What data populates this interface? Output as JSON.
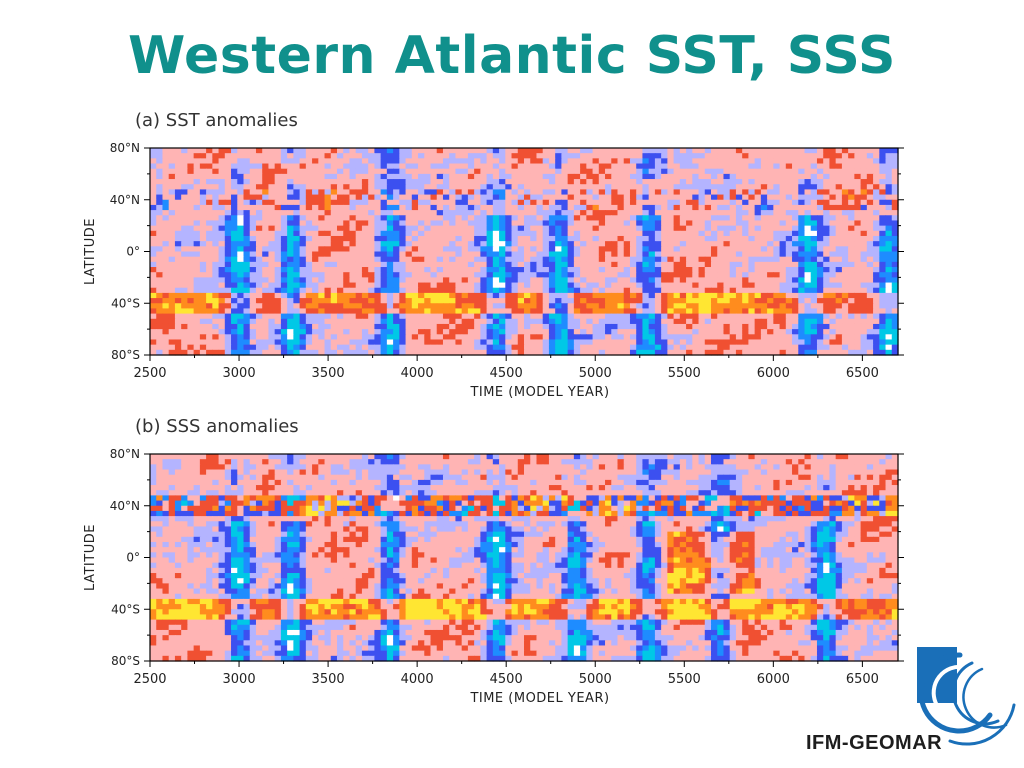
{
  "slide": {
    "title": "Western Atlantic SST, SSS",
    "title_color": "#10908c"
  },
  "colors": {
    "strong_negative": "#ffffff",
    "negative_4": "#00c8e6",
    "negative_3": "#1e8cff",
    "negative_2": "#3c50f0",
    "negative_1": "#b4b4ff",
    "positive_1": "#ffb4b4",
    "positive_2": "#f05032",
    "positive_3": "#ff8c1e",
    "positive_4": "#ffe632"
  },
  "logo": {
    "text": "IFM-GEOMAR",
    "icon": "ifm-geomar-logo-icon",
    "color": "#1a6fb8"
  },
  "chart_data": [
    {
      "type": "heatmap",
      "title": "(a) SST anomalies",
      "xlabel": "TIME (MODEL YEAR)",
      "ylabel": "LATITUDE",
      "xlim": [
        2500,
        6700
      ],
      "ylim": [
        -80,
        80
      ],
      "x_ticks": [
        "2500",
        "3000",
        "3500",
        "4000",
        "4500",
        "5000",
        "5500",
        "6000",
        "6500"
      ],
      "y_ticks": [
        "80°N",
        "40°N",
        "0°",
        "40°S",
        "80°S"
      ],
      "cold_events_x": [
        3000,
        3300,
        3850,
        4450,
        4800,
        5300,
        6200,
        6650
      ],
      "grid": false
    },
    {
      "type": "heatmap",
      "title": "(b) SSS anomalies",
      "xlabel": "TIME (MODEL YEAR)",
      "ylabel": "LATITUDE",
      "xlim": [
        2500,
        6700
      ],
      "ylim": [
        -80,
        80
      ],
      "x_ticks": [
        "2500",
        "3000",
        "3500",
        "4000",
        "4500",
        "5000",
        "5500",
        "6000",
        "6500"
      ],
      "y_ticks": [
        "80°N",
        "40°N",
        "0°",
        "40°S",
        "80°S"
      ],
      "fresh_events_x": [
        3000,
        3300,
        3850,
        4450,
        4900,
        5300,
        5700,
        6300
      ],
      "grid": false
    }
  ]
}
